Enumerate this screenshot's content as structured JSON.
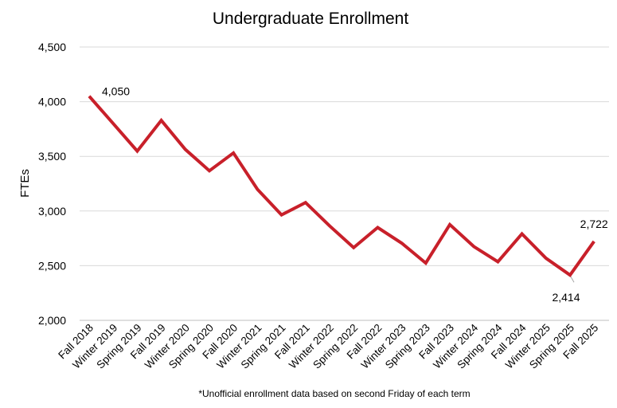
{
  "chart_data": {
    "type": "line",
    "title": "Undergraduate Enrollment",
    "ylabel": "FTEs",
    "xlabel": "",
    "footnote": "*Unofficial enrollment data based on second Friday of each term",
    "ylim": [
      2000,
      4500
    ],
    "yticks": [
      2000,
      2500,
      3000,
      3500,
      4000,
      4500
    ],
    "ytick_labels": [
      "2,000",
      "2,500",
      "3,000",
      "3,500",
      "4,000",
      "4,500"
    ],
    "grid": true,
    "line_color": "#C8202A",
    "categories": [
      "Fall 2018",
      "Winter 2019",
      "Spring 2019",
      "Fall 2019",
      "Winter 2020",
      "Spring 2020",
      "Fall 2020",
      "Winter 2021",
      "Spring 2021",
      "Fall 2021",
      "Winter 2022",
      "Spring 2022",
      "Fall 2022",
      "Winter 2023",
      "Spring 2023",
      "Fall 2023",
      "Winter 2024",
      "Spring 2024",
      "Fall 2024",
      "Winter 2025",
      "Spring 2025",
      "Fall 2025"
    ],
    "values": [
      4050,
      3800,
      3548,
      3829,
      3563,
      3368,
      3531,
      3198,
      2965,
      3077,
      2864,
      2665,
      2849,
      2706,
      2524,
      2876,
      2675,
      2536,
      2791,
      2568,
      2414,
      2722
    ],
    "data_labels": [
      {
        "index": 0,
        "text": "4,050",
        "position": "right"
      },
      {
        "index": 20,
        "text": "2,414",
        "position": "below"
      },
      {
        "index": 21,
        "text": "2,722",
        "position": "above"
      }
    ]
  }
}
